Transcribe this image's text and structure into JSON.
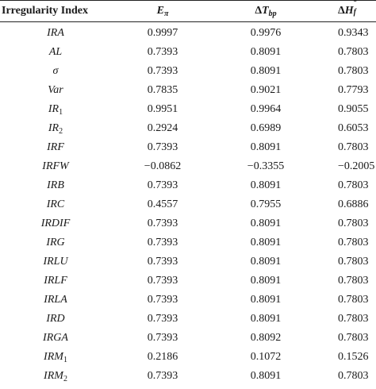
{
  "header": {
    "col0": "Irregularity Index",
    "col1_symbol": "E",
    "col1_sub": "π",
    "col2_prefix": "Δ",
    "col2_symbol": "T",
    "col2_sub": "bp",
    "col3_prefix": "Δ",
    "col3_symbol": "H",
    "col3_sup": "o",
    "col3_sub": "f"
  },
  "rows": [
    {
      "name": "IRA",
      "sub": "",
      "e": "0.9997",
      "tbp": "0.9976",
      "hf": "0.9343"
    },
    {
      "name": "AL",
      "sub": "",
      "e": "0.7393",
      "tbp": "0.8091",
      "hf": "0.7803"
    },
    {
      "name": "σ",
      "sub": "",
      "e": "0.7393",
      "tbp": "0.8091",
      "hf": "0.7803"
    },
    {
      "name": "Var",
      "sub": "",
      "e": "0.7835",
      "tbp": "0.9021",
      "hf": "0.7793"
    },
    {
      "name": "IR",
      "sub": "1",
      "e": "0.9951",
      "tbp": "0.9964",
      "hf": "0.9055"
    },
    {
      "name": "IR",
      "sub": "2",
      "e": "0.2924",
      "tbp": "0.6989",
      "hf": "0.6053"
    },
    {
      "name": "IRF",
      "sub": "",
      "e": "0.7393",
      "tbp": "0.8091",
      "hf": "0.7803"
    },
    {
      "name": "IRFW",
      "sub": "",
      "e": "−0.0862",
      "tbp": "−0.3355",
      "hf": "−0.2005"
    },
    {
      "name": "IRB",
      "sub": "",
      "e": "0.7393",
      "tbp": "0.8091",
      "hf": "0.7803"
    },
    {
      "name": "IRC",
      "sub": "",
      "e": "0.4557",
      "tbp": "0.7955",
      "hf": "0.6886"
    },
    {
      "name": "IRDIF",
      "sub": "",
      "e": "0.7393",
      "tbp": "0.8091",
      "hf": "0.7803"
    },
    {
      "name": "IRG",
      "sub": "",
      "e": "0.7393",
      "tbp": "0.8091",
      "hf": "0.7803"
    },
    {
      "name": "IRLU",
      "sub": "",
      "e": "0.7393",
      "tbp": "0.8091",
      "hf": "0.7803"
    },
    {
      "name": "IRLF",
      "sub": "",
      "e": "0.7393",
      "tbp": "0.8091",
      "hf": "0.7803"
    },
    {
      "name": "IRLA",
      "sub": "",
      "e": "0.7393",
      "tbp": "0.8091",
      "hf": "0.7803"
    },
    {
      "name": "IRD",
      "sub": "",
      "e": "0.7393",
      "tbp": "0.8091",
      "hf": "0.7803"
    },
    {
      "name": "IRGA",
      "sub": "",
      "e": "0.7393",
      "tbp": "0.8092",
      "hf": "0.7803"
    },
    {
      "name": "IRM",
      "sub": "1",
      "e": "0.2186",
      "tbp": "0.1072",
      "hf": "0.1526"
    },
    {
      "name": "IRM",
      "sub": "2",
      "e": "0.7393",
      "tbp": "0.8091",
      "hf": "0.7803"
    }
  ]
}
